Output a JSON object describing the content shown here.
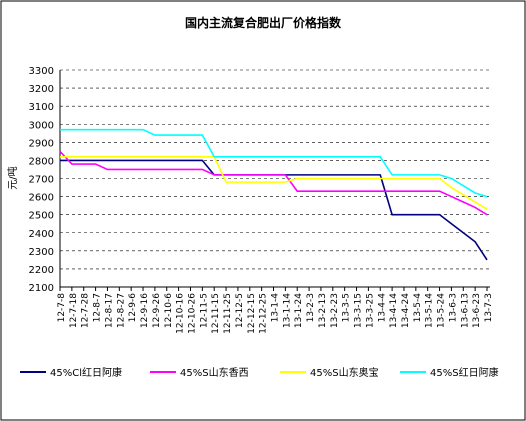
{
  "chart_data": {
    "type": "line",
    "title": "国内主流复合肥出厂价格指数",
    "y_label": "元/吨",
    "categories": [
      "12-7-8",
      "12-7-18",
      "12-7-28",
      "12-8-7",
      "12-8-17",
      "12-8-27",
      "12-9-6",
      "12-9-16",
      "12-9-26",
      "12-10-6",
      "12-10-16",
      "12-10-26",
      "12-11-5",
      "12-11-15",
      "12-11-25",
      "12-12-5",
      "12-12-15",
      "12-12-25",
      "13-1-4",
      "13-1-14",
      "13-1-24",
      "13-2-3",
      "13-2-13",
      "13-2-23",
      "13-3-5",
      "13-3-15",
      "13-3-25",
      "13-4-4",
      "13-4-14",
      "13-4-24",
      "13-5-4",
      "13-5-14",
      "13-5-24",
      "13-6-3",
      "13-6-13",
      "13-6-23",
      "13-7-3"
    ],
    "series": [
      {
        "name": "45%Cl红日阿康",
        "color": "#000080",
        "values": [
          2800,
          2800,
          2800,
          2800,
          2800,
          2800,
          2800,
          2800,
          2800,
          2800,
          2800,
          2800,
          2800,
          2720,
          2720,
          2720,
          2720,
          2720,
          2720,
          2720,
          2720,
          2720,
          2720,
          2720,
          2720,
          2720,
          2720,
          2720,
          2500,
          2500,
          2500,
          2500,
          2500,
          2450,
          2400,
          2350,
          2250
        ]
      },
      {
        "name": "45%S山东香西",
        "color": "#ff00ff",
        "values": [
          2850,
          2780,
          2780,
          2780,
          2750,
          2750,
          2750,
          2750,
          2750,
          2750,
          2750,
          2750,
          2750,
          2720,
          2720,
          2720,
          2720,
          2720,
          2720,
          2720,
          2630,
          2630,
          2630,
          2630,
          2630,
          2630,
          2630,
          2630,
          2630,
          2630,
          2630,
          2630,
          2630,
          2600,
          2570,
          2540,
          2500
        ]
      },
      {
        "name": "45%S山东奥宝",
        "color": "#ffff00",
        "values": [
          2820,
          2820,
          2820,
          2820,
          2820,
          2820,
          2820,
          2820,
          2820,
          2820,
          2820,
          2820,
          2820,
          2820,
          2680,
          2680,
          2680,
          2680,
          2680,
          2680,
          2700,
          2700,
          2700,
          2700,
          2700,
          2700,
          2700,
          2700,
          2700,
          2700,
          2700,
          2700,
          2700,
          2650,
          2610,
          2570,
          2530
        ]
      },
      {
        "name": "45%S红日阿康",
        "color": "#00ffff",
        "values": [
          2970,
          2970,
          2970,
          2970,
          2970,
          2970,
          2970,
          2970,
          2940,
          2940,
          2940,
          2940,
          2940,
          2820,
          2820,
          2820,
          2820,
          2820,
          2820,
          2820,
          2820,
          2820,
          2820,
          2820,
          2820,
          2820,
          2820,
          2820,
          2720,
          2720,
          2720,
          2720,
          2720,
          2700,
          2660,
          2620,
          2600
        ]
      }
    ],
    "ylim": [
      2100,
      3300
    ],
    "yticks": [
      2100,
      2200,
      2300,
      2400,
      2500,
      2600,
      2700,
      2800,
      2900,
      3000,
      3100,
      3200,
      3300
    ],
    "grid": true
  }
}
